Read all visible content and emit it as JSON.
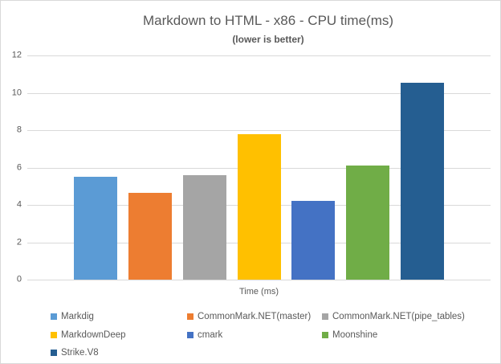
{
  "theme": {
    "text_color": "#595959",
    "gridline_color": "#D9D9D9",
    "border_color": "#D9D9D9",
    "background": "#FFFFFF"
  },
  "chart_data": {
    "type": "bar",
    "title": "Markdown to HTML - x86 - CPU time(ms)",
    "subtitle": "(lower is better)",
    "xlabel": "Time (ms)",
    "ylabel": "",
    "ylim": [
      0,
      12
    ],
    "yticks": [
      0,
      2,
      4,
      6,
      8,
      10,
      12
    ],
    "grid": true,
    "legend_position": "bottom-left",
    "categories": [
      "Markdig",
      "CommonMark.NET(master)",
      "CommonMark.NET(pipe_tables)",
      "MarkdownDeep",
      "cmark",
      "Moonshine",
      "Strike.V8"
    ],
    "values": [
      5.5,
      4.65,
      5.6,
      7.8,
      4.2,
      6.1,
      10.55
    ],
    "bar_colors": [
      "#5B9BD5",
      "#ED7D31",
      "#A5A5A5",
      "#FFC000",
      "#4472C4",
      "#70AD47",
      "#255E91"
    ]
  }
}
